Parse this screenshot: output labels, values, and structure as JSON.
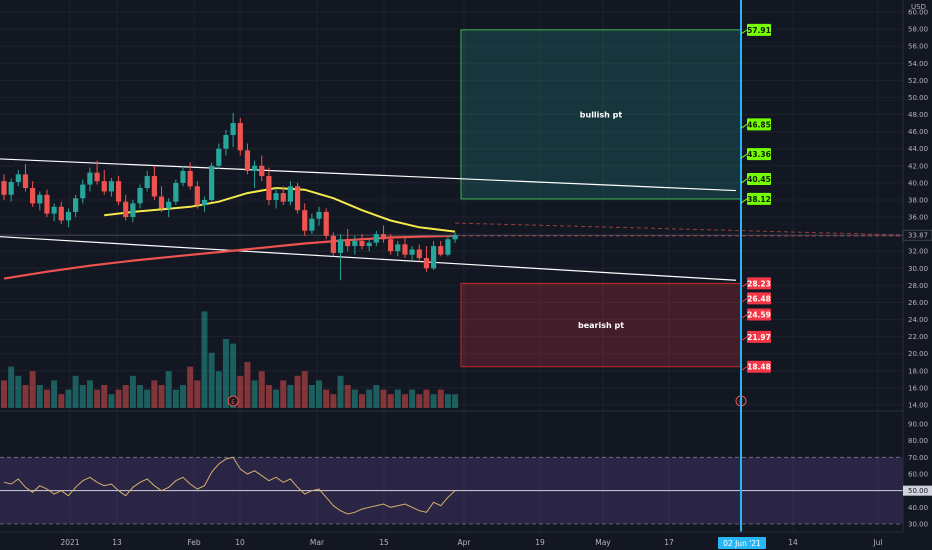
{
  "chart_data": {
    "type": "candlestick",
    "currency": "USD",
    "price_axis_ticks": [
      "60.00",
      "58.00",
      "56.00",
      "54.00",
      "52.00",
      "50.00",
      "48.00",
      "46.00",
      "44.00",
      "42.00",
      "40.00",
      "38.00",
      "36.00",
      "34.00",
      "32.00",
      "30.00",
      "28.00",
      "26.00",
      "24.00",
      "22.00",
      "20.00",
      "18.00",
      "16.00",
      "14.00"
    ],
    "rsi_axis_ticks": [
      "90.00",
      "80.00",
      "70.00",
      "60.00",
      "50.00",
      "40.00",
      "30.00"
    ],
    "time_axis_labels": [
      "2021",
      "13",
      "Feb",
      "10",
      "Mar",
      "15",
      "Apr",
      "19",
      "May",
      "17",
      "14",
      "Jul"
    ],
    "current_price": {
      "value": 33.87,
      "label": "33.87"
    },
    "current_rsi": {
      "value": 50,
      "label": "50.00"
    },
    "target_date_label": "02 Jun '21",
    "zones": [
      {
        "name": "bullish pt",
        "top": 57.91,
        "bottom": 38.12,
        "color": "#26a69a"
      },
      {
        "name": "bearish pt",
        "top": 28.23,
        "bottom": 18.48,
        "color": "#f23645"
      }
    ],
    "bullish_targets": [
      {
        "value": 57.91,
        "label": "57.91"
      },
      {
        "value": 46.85,
        "label": "46.85"
      },
      {
        "value": 43.36,
        "label": "43.36"
      },
      {
        "value": 40.45,
        "label": "40.45"
      },
      {
        "value": 38.12,
        "label": "38.12"
      }
    ],
    "bearish_targets": [
      {
        "value": 28.23,
        "label": "28.23"
      },
      {
        "value": 26.48,
        "label": "26.48"
      },
      {
        "value": 24.59,
        "label": "24.59"
      },
      {
        "value": 21.97,
        "label": "21.97"
      },
      {
        "value": 18.48,
        "label": "18.48"
      }
    ],
    "channel": {
      "upper": [
        {
          "x": 0,
          "y": 42.8
        },
        {
          "x": 105,
          "y": 39.1
        }
      ],
      "lower": [
        {
          "x": 0,
          "y": 33.7
        },
        {
          "x": 105,
          "y": 28.6
        }
      ]
    },
    "ohlc_start_index": 0,
    "ohlc": [
      [
        40.2,
        41.0,
        38.0,
        38.6
      ],
      [
        38.6,
        40.5,
        37.8,
        40.1
      ],
      [
        40.1,
        41.5,
        39.6,
        41.0
      ],
      [
        41.0,
        42.2,
        39.0,
        39.4
      ],
      [
        39.4,
        40.2,
        37.2,
        37.6
      ],
      [
        37.6,
        39.0,
        36.8,
        38.6
      ],
      [
        38.6,
        39.2,
        36.0,
        36.4
      ],
      [
        36.4,
        37.6,
        35.5,
        37.2
      ],
      [
        37.2,
        37.8,
        35.2,
        35.6
      ],
      [
        35.6,
        37.0,
        34.8,
        36.6
      ],
      [
        36.6,
        38.6,
        36.0,
        38.2
      ],
      [
        38.2,
        40.4,
        37.6,
        39.8
      ],
      [
        39.8,
        41.8,
        39.0,
        41.2
      ],
      [
        41.2,
        42.6,
        39.8,
        40.2
      ],
      [
        40.2,
        41.5,
        38.6,
        39.0
      ],
      [
        39.0,
        40.6,
        38.4,
        40.2
      ],
      [
        40.2,
        40.8,
        37.4,
        37.8
      ],
      [
        37.8,
        38.6,
        35.6,
        36.0
      ],
      [
        36.0,
        38.0,
        35.4,
        37.6
      ],
      [
        37.6,
        39.8,
        37.0,
        39.4
      ],
      [
        39.4,
        41.4,
        39.0,
        40.8
      ],
      [
        40.8,
        42.0,
        38.0,
        38.4
      ],
      [
        38.4,
        39.6,
        36.6,
        37.0
      ],
      [
        37.0,
        38.2,
        36.0,
        37.8
      ],
      [
        37.8,
        40.4,
        37.4,
        40.0
      ],
      [
        40.0,
        42.0,
        39.6,
        41.4
      ],
      [
        41.4,
        42.4,
        39.2,
        39.6
      ],
      [
        39.6,
        40.2,
        37.0,
        37.4
      ],
      [
        37.4,
        38.4,
        36.6,
        38.0
      ],
      [
        38.0,
        42.4,
        37.8,
        42.0
      ],
      [
        42.0,
        44.6,
        41.6,
        44.0
      ],
      [
        44.0,
        46.2,
        43.2,
        45.6
      ],
      [
        45.6,
        48.2,
        44.2,
        47.0
      ],
      [
        47.0,
        47.6,
        43.2,
        43.8
      ],
      [
        43.8,
        44.6,
        41.0,
        41.4
      ],
      [
        41.4,
        42.6,
        39.4,
        42.0
      ],
      [
        42.0,
        43.2,
        40.2,
        40.8
      ],
      [
        40.8,
        41.8,
        37.4,
        38.0
      ],
      [
        38.0,
        39.4,
        37.0,
        38.8
      ],
      [
        38.8,
        39.6,
        37.4,
        37.8
      ],
      [
        37.8,
        40.2,
        37.4,
        39.6
      ],
      [
        39.6,
        40.0,
        36.4,
        36.8
      ],
      [
        36.8,
        37.6,
        33.8,
        34.4
      ],
      [
        34.4,
        36.4,
        34.0,
        35.8
      ],
      [
        35.8,
        37.2,
        35.0,
        36.6
      ],
      [
        36.6,
        37.0,
        33.4,
        33.8
      ],
      [
        33.8,
        34.2,
        31.4,
        31.8
      ],
      [
        31.8,
        34.0,
        28.6,
        33.4
      ],
      [
        33.4,
        34.6,
        32.0,
        32.6
      ],
      [
        32.6,
        33.8,
        31.6,
        33.2
      ],
      [
        33.2,
        34.0,
        32.2,
        32.6
      ],
      [
        32.6,
        33.4,
        32.0,
        33.0
      ],
      [
        33.0,
        34.4,
        32.6,
        34.0
      ],
      [
        34.0,
        35.0,
        33.0,
        33.4
      ],
      [
        33.4,
        34.0,
        31.6,
        32.0
      ],
      [
        32.0,
        33.2,
        31.4,
        32.8
      ],
      [
        32.8,
        33.6,
        31.2,
        31.6
      ],
      [
        31.6,
        32.6,
        31.0,
        32.2
      ],
      [
        32.2,
        32.8,
        30.8,
        31.2
      ],
      [
        31.2,
        32.6,
        29.6,
        30.0
      ],
      [
        30.0,
        33.2,
        29.8,
        32.6
      ],
      [
        32.6,
        33.2,
        31.4,
        31.6
      ],
      [
        31.6,
        33.8,
        31.4,
        33.4
      ],
      [
        33.4,
        34.2,
        33.0,
        33.9
      ]
    ],
    "volume": [
      6,
      9,
      7,
      5,
      8,
      5,
      4,
      6,
      3,
      4,
      7,
      5,
      6,
      4,
      5,
      3,
      4,
      5,
      7,
      5,
      4,
      6,
      5,
      8,
      4,
      5,
      9,
      6,
      21,
      12,
      8,
      15,
      14,
      7,
      10,
      6,
      8,
      5,
      4,
      6,
      5,
      7,
      8,
      5,
      6,
      4,
      3,
      7,
      5,
      4,
      3,
      4,
      5,
      4,
      3,
      4,
      3,
      4,
      3,
      4,
      3,
      4,
      3,
      3
    ],
    "ma_fast": [
      {
        "x": 14,
        "y": 36.2
      },
      {
        "x": 18,
        "y": 36.6
      },
      {
        "x": 22,
        "y": 36.9
      },
      {
        "x": 26,
        "y": 37.2
      },
      {
        "x": 30,
        "y": 37.8
      },
      {
        "x": 34,
        "y": 38.8
      },
      {
        "x": 38,
        "y": 39.4
      },
      {
        "x": 42,
        "y": 39.2
      },
      {
        "x": 46,
        "y": 38.2
      },
      {
        "x": 50,
        "y": 36.8
      },
      {
        "x": 54,
        "y": 35.6
      },
      {
        "x": 58,
        "y": 34.8
      },
      {
        "x": 63,
        "y": 34.3
      }
    ],
    "ma_slow": [
      {
        "x": 0,
        "y": 28.8
      },
      {
        "x": 6,
        "y": 29.6
      },
      {
        "x": 12,
        "y": 30.3
      },
      {
        "x": 18,
        "y": 30.9
      },
      {
        "x": 24,
        "y": 31.4
      },
      {
        "x": 30,
        "y": 31.9
      },
      {
        "x": 36,
        "y": 32.4
      },
      {
        "x": 42,
        "y": 32.9
      },
      {
        "x": 48,
        "y": 33.3
      },
      {
        "x": 54,
        "y": 33.6
      },
      {
        "x": 58,
        "y": 33.7
      },
      {
        "x": 63,
        "y": 33.8
      }
    ],
    "ma_slow_projection_end": {
      "x": 105,
      "y": 33.8
    },
    "ma_fast_projection_start": {
      "x": 63,
      "y": 35.3
    },
    "ma_fast_projection_end": {
      "x": 105,
      "y": 33.9
    },
    "rsi": [
      55,
      54,
      57,
      52,
      49,
      53,
      51,
      48,
      50,
      47,
      52,
      56,
      58,
      55,
      53,
      54,
      50,
      47,
      52,
      55,
      57,
      53,
      50,
      52,
      56,
      58,
      54,
      51,
      53,
      61,
      66,
      69,
      70,
      63,
      60,
      62,
      59,
      56,
      58,
      55,
      57,
      52,
      48,
      50,
      51,
      46,
      41,
      38,
      36,
      37,
      39,
      40,
      41,
      42,
      40,
      41,
      42,
      40,
      38,
      37,
      43,
      41,
      46,
      50
    ],
    "rsi_levels": {
      "upper": 70,
      "middle": 50,
      "lower": 30
    },
    "colors": {
      "up": "#26a69a",
      "down": "#ef5350",
      "ma_fast": "#f5e94c",
      "ma_slow": "#ef5350",
      "rsi_line": "#d4b06a",
      "target_line": "#29b6f6"
    }
  }
}
